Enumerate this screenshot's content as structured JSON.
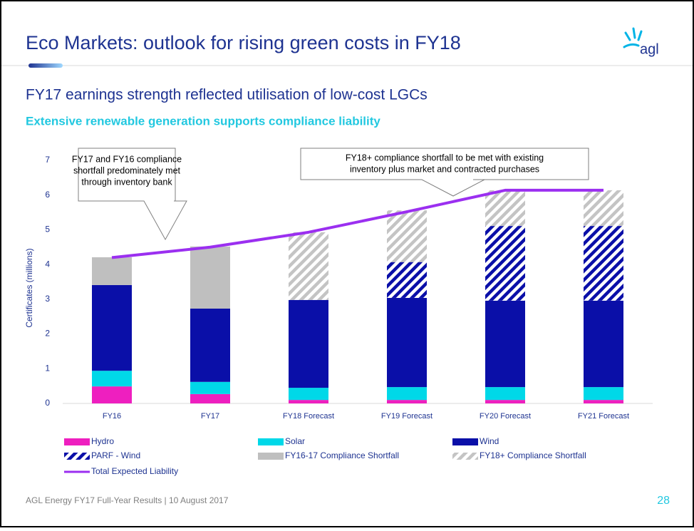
{
  "slide": {
    "title": "Eco Markets: outlook for rising green costs in FY18",
    "logo": "agl",
    "subtitle": "FY17 earnings strength reflected utilisation of low-cost LGCs",
    "heading": "Extensive renewable generation supports compliance liability",
    "footer": "AGL Energy FY17 Full-Year Results  |  10 August 2017",
    "page_number": 28
  },
  "chart_data": {
    "type": "bar",
    "stacked": true,
    "ylabel": "Certificates (millions)",
    "annotations": [
      {
        "lines": [
          "FY17 and FY16 compliance",
          "shortfall predominately met",
          "through inventory bank"
        ]
      },
      {
        "lines": [
          "FY18+ compliance shortfall to be met with existing",
          "inventory plus market and contracted purchases"
        ]
      }
    ],
    "categories": [
      "FY16",
      "FY17",
      "FY18 Forecast",
      "FY19 Forecast",
      "FY20 Forecast",
      "FY21 Forecast"
    ],
    "ylim": [
      0,
      7
    ],
    "yticks": [
      0,
      1,
      2,
      3,
      4,
      5,
      6,
      7
    ],
    "series": [
      {
        "name": "Hydro",
        "color": "#ee1fbf",
        "values": [
          0.49,
          0.27,
          0.1,
          0.1,
          0.1,
          0.1
        ]
      },
      {
        "name": "Solar",
        "color": "#00d8e8",
        "values": [
          0.45,
          0.35,
          0.35,
          0.37,
          0.37,
          0.37
        ]
      },
      {
        "name": "Wind",
        "color": "#0a0fa8",
        "values": [
          2.47,
          2.11,
          2.53,
          2.57,
          2.49,
          2.49
        ]
      },
      {
        "name": "PARF - Wind",
        "color": "#0a0fa8",
        "pattern": "hatch",
        "values": [
          null,
          null,
          null,
          1.03,
          2.15,
          2.15
        ]
      },
      {
        "name": "FY16-17 Compliance Shortfall",
        "color": "#bfbfbf",
        "values": [
          0.8,
          1.79,
          null,
          null,
          null,
          null
        ]
      },
      {
        "name": "FY18+ Compliance Shortfall",
        "color": "#c4c4c4",
        "pattern": "hatch",
        "values": [
          null,
          null,
          1.95,
          1.49,
          1.03,
          1.03
        ]
      },
      {
        "name": "Total Expected Liability",
        "color": "#9b2ff0",
        "type": "line",
        "values": [
          4.2,
          4.5,
          4.93,
          5.52,
          6.14,
          6.14
        ]
      }
    ]
  }
}
